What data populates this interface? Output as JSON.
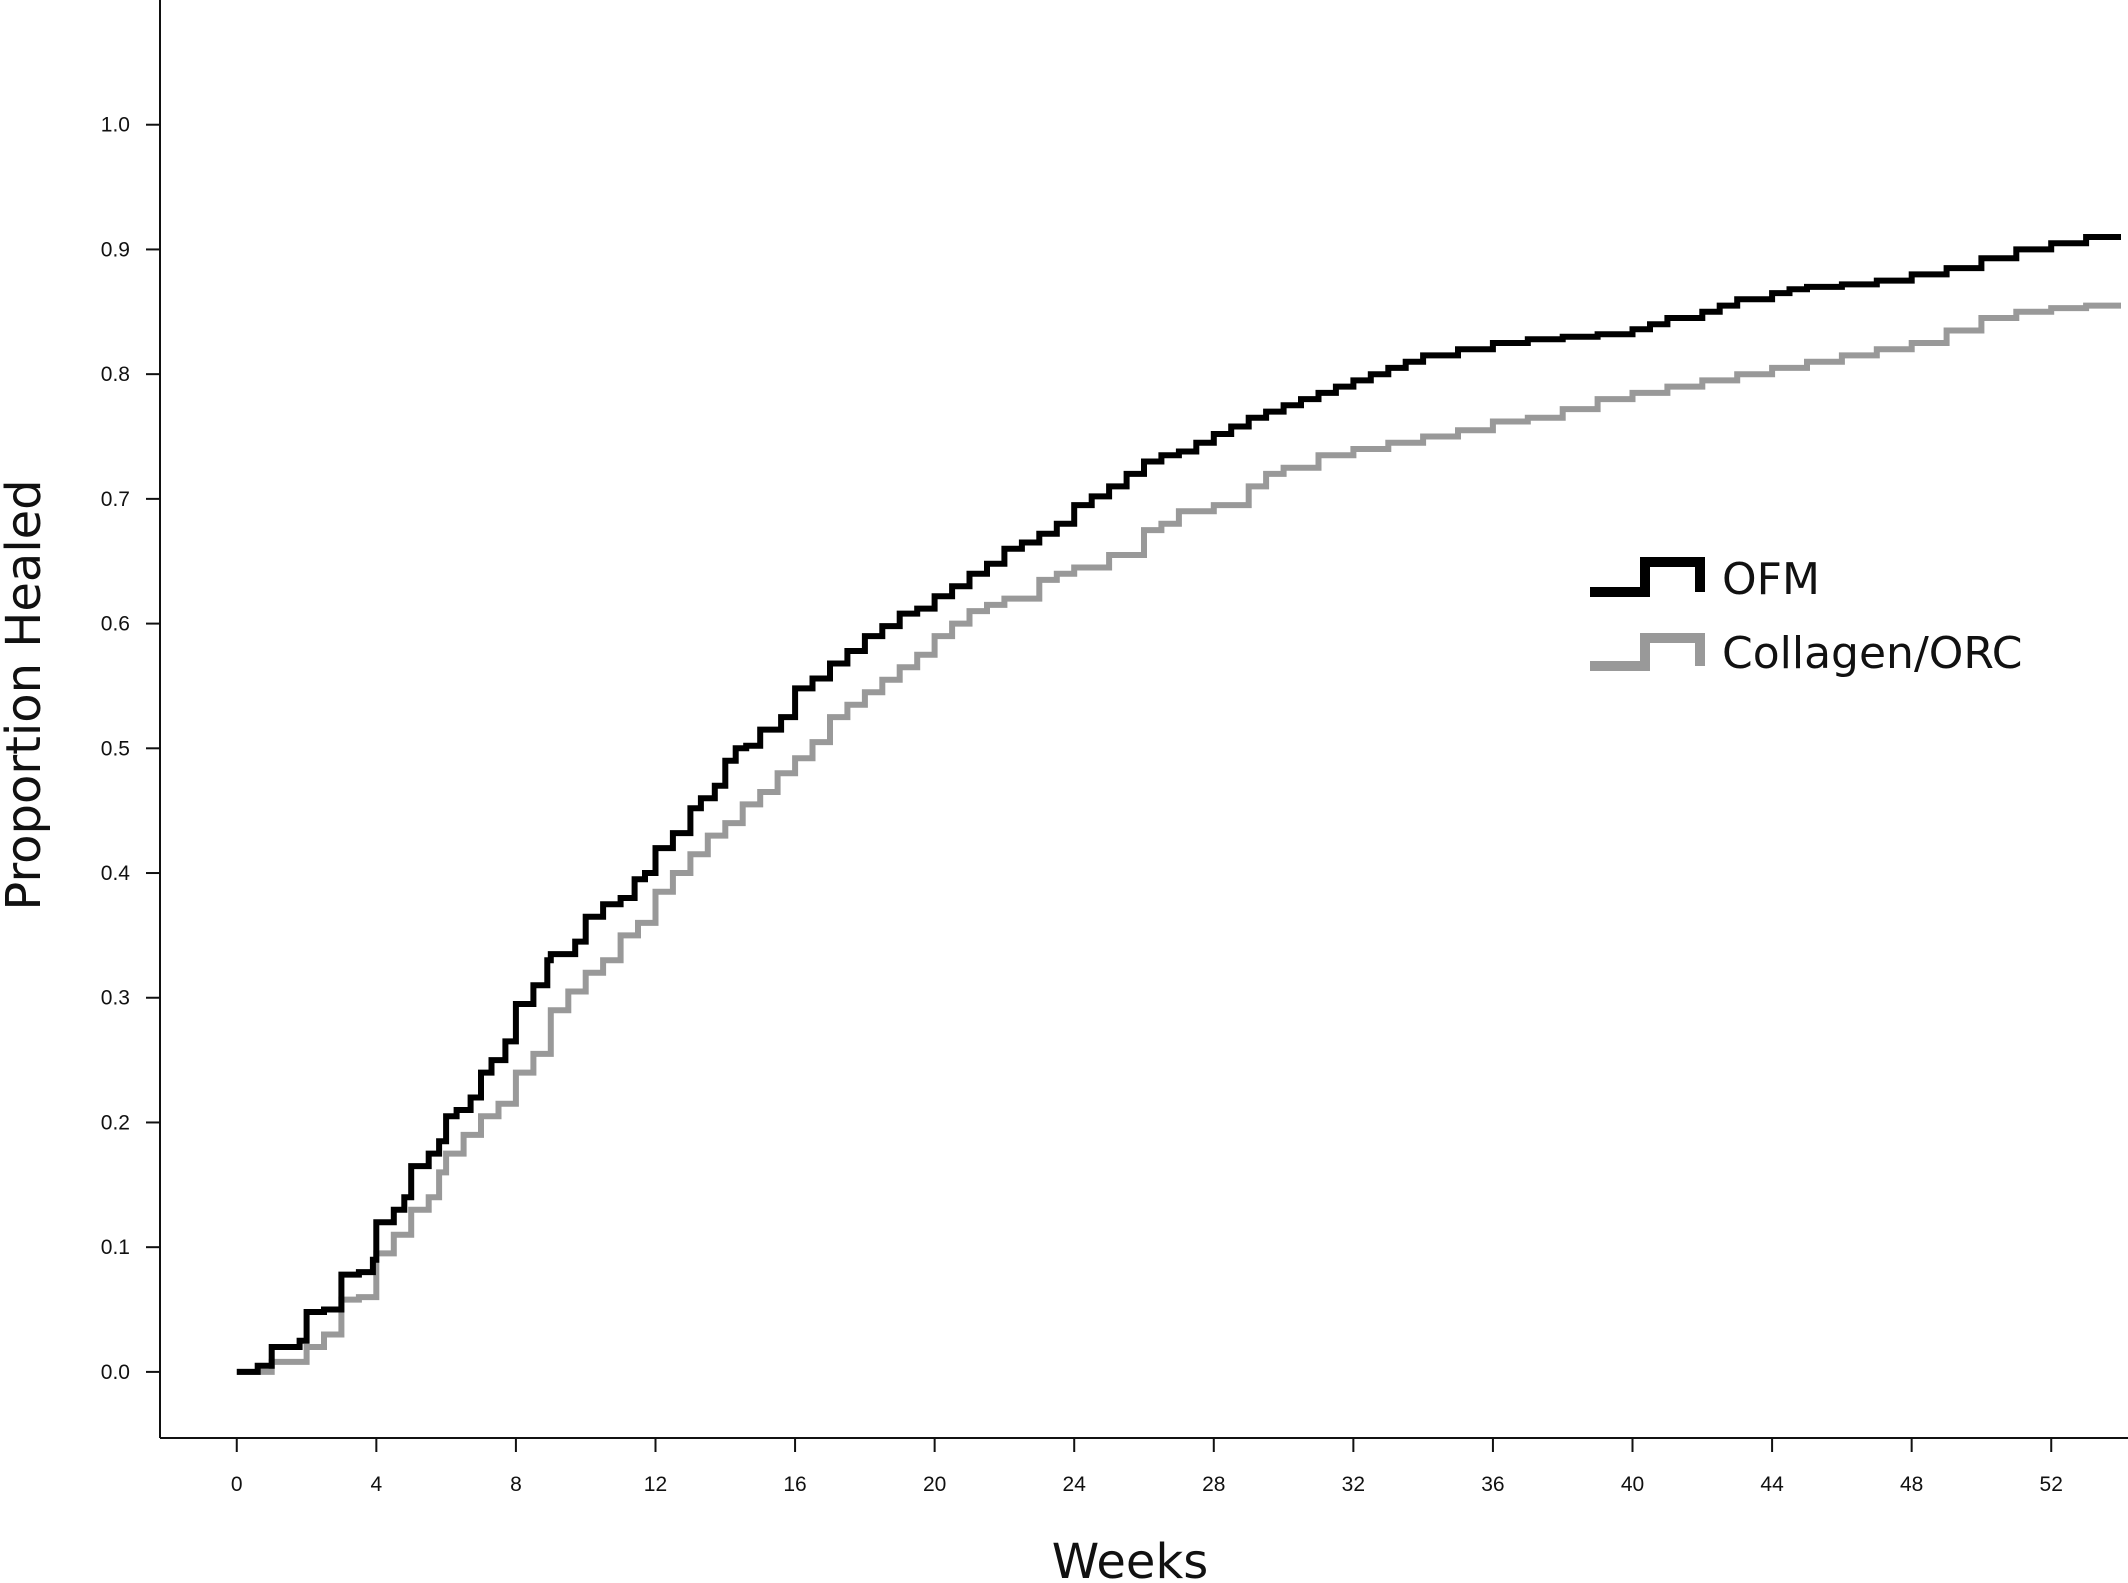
{
  "chart_data": {
    "type": "line",
    "step": true,
    "title": "",
    "xlabel": "Weeks",
    "ylabel": "Proportion Healed",
    "xlim": [
      -2.2,
      54.2
    ],
    "ylim": [
      -0.053,
      1.1
    ],
    "xticks": [
      0,
      4,
      8,
      12,
      16,
      20,
      24,
      28,
      32,
      36,
      40,
      44,
      48,
      52
    ],
    "xtick_labels": [
      "0",
      "4",
      "8",
      "12",
      "16",
      "20",
      "24",
      "28",
      "32",
      "36",
      "40",
      "44",
      "48",
      "52"
    ],
    "yticks": [
      0.0,
      0.1,
      0.2,
      0.3,
      0.4,
      0.5,
      0.6,
      0.7,
      0.8,
      0.9,
      1.0
    ],
    "ytick_labels": [
      "0.0",
      "0.1",
      "0.2",
      "0.3",
      "0.4",
      "0.5",
      "0.6",
      "0.7",
      "0.8",
      "0.9",
      "1.0"
    ],
    "grid": false,
    "legend": {
      "position": "center-right",
      "entries": [
        "OFM",
        "Collagen/ORC"
      ]
    },
    "series": [
      {
        "name": "OFM",
        "color": "#000000",
        "x": [
          0,
          0.6,
          1.0,
          1.8,
          2.0,
          2.5,
          3.0,
          3.5,
          3.9,
          4.0,
          4.5,
          4.8,
          5.0,
          5.5,
          5.8,
          6.0,
          6.3,
          6.7,
          7.0,
          7.3,
          7.7,
          8.0,
          8.5,
          8.9,
          9.0,
          9.7,
          10.0,
          10.5,
          11.0,
          11.4,
          11.7,
          12.0,
          12.5,
          13.0,
          13.3,
          13.7,
          14.0,
          14.3,
          14.6,
          15.0,
          15.6,
          16.0,
          16.5,
          17.0,
          17.5,
          18.0,
          18.5,
          19.0,
          19.5,
          20.0,
          20.5,
          21.0,
          21.5,
          22.0,
          22.5,
          23.0,
          23.5,
          24.0,
          24.5,
          25.0,
          25.5,
          26.0,
          26.5,
          27.0,
          27.5,
          28.0,
          28.5,
          29.0,
          29.5,
          30.0,
          30.5,
          31.0,
          31.5,
          32.0,
          32.5,
          33.0,
          33.5,
          34.0,
          35.0,
          36.0,
          37.0,
          38.0,
          39.0,
          40.0,
          40.5,
          41.0,
          42.0,
          42.5,
          43.0,
          44.0,
          44.5,
          45.0,
          46.0,
          47.0,
          48.0,
          49.0,
          50.0,
          51.0,
          52.0,
          53.0,
          54.0
        ],
        "y": [
          0.0,
          0.005,
          0.02,
          0.025,
          0.048,
          0.05,
          0.078,
          0.08,
          0.09,
          0.12,
          0.13,
          0.14,
          0.165,
          0.175,
          0.185,
          0.205,
          0.21,
          0.22,
          0.24,
          0.25,
          0.265,
          0.295,
          0.31,
          0.33,
          0.335,
          0.345,
          0.365,
          0.375,
          0.38,
          0.395,
          0.4,
          0.42,
          0.432,
          0.452,
          0.46,
          0.47,
          0.49,
          0.5,
          0.502,
          0.515,
          0.525,
          0.548,
          0.556,
          0.568,
          0.578,
          0.59,
          0.598,
          0.608,
          0.612,
          0.622,
          0.63,
          0.64,
          0.648,
          0.66,
          0.665,
          0.672,
          0.68,
          0.695,
          0.702,
          0.71,
          0.72,
          0.73,
          0.735,
          0.738,
          0.745,
          0.752,
          0.758,
          0.765,
          0.77,
          0.775,
          0.78,
          0.785,
          0.79,
          0.795,
          0.8,
          0.805,
          0.81,
          0.815,
          0.82,
          0.825,
          0.828,
          0.83,
          0.832,
          0.836,
          0.84,
          0.845,
          0.85,
          0.855,
          0.86,
          0.865,
          0.868,
          0.87,
          0.872,
          0.875,
          0.88,
          0.885,
          0.893,
          0.9,
          0.905,
          0.91,
          0.91
        ]
      },
      {
        "name": "Collagen/ORC",
        "color": "#999999",
        "x": [
          0,
          1.0,
          2.0,
          2.5,
          3.0,
          3.5,
          4.0,
          4.5,
          5.0,
          5.5,
          5.8,
          6.0,
          6.5,
          7.0,
          7.5,
          8.0,
          8.5,
          9.0,
          9.5,
          10.0,
          10.5,
          11.0,
          11.5,
          12.0,
          12.5,
          13.0,
          13.5,
          14.0,
          14.5,
          15.0,
          15.5,
          16.0,
          16.5,
          17.0,
          17.5,
          18.0,
          18.5,
          19.0,
          19.5,
          20.0,
          20.5,
          21.0,
          21.5,
          22.0,
          23.0,
          23.5,
          24.0,
          25.0,
          26.0,
          26.5,
          27.0,
          28.0,
          29.0,
          29.5,
          30.0,
          31.0,
          32.0,
          33.0,
          34.0,
          35.0,
          36.0,
          37.0,
          38.0,
          39.0,
          40.0,
          41.0,
          42.0,
          43.0,
          44.0,
          45.0,
          46.0,
          47.0,
          48.0,
          49.0,
          50.0,
          51.0,
          52.0,
          53.0,
          54.0
        ],
        "y": [
          0.0,
          0.008,
          0.02,
          0.03,
          0.058,
          0.06,
          0.095,
          0.11,
          0.13,
          0.14,
          0.16,
          0.175,
          0.19,
          0.205,
          0.215,
          0.24,
          0.255,
          0.29,
          0.305,
          0.32,
          0.33,
          0.35,
          0.36,
          0.385,
          0.4,
          0.415,
          0.43,
          0.44,
          0.455,
          0.465,
          0.48,
          0.492,
          0.505,
          0.525,
          0.535,
          0.545,
          0.555,
          0.565,
          0.575,
          0.59,
          0.6,
          0.61,
          0.615,
          0.62,
          0.635,
          0.64,
          0.645,
          0.655,
          0.675,
          0.68,
          0.69,
          0.695,
          0.71,
          0.72,
          0.725,
          0.735,
          0.74,
          0.745,
          0.75,
          0.755,
          0.762,
          0.765,
          0.772,
          0.78,
          0.785,
          0.79,
          0.795,
          0.8,
          0.805,
          0.81,
          0.815,
          0.82,
          0.825,
          0.835,
          0.845,
          0.85,
          0.853,
          0.855,
          0.855
        ]
      }
    ]
  }
}
